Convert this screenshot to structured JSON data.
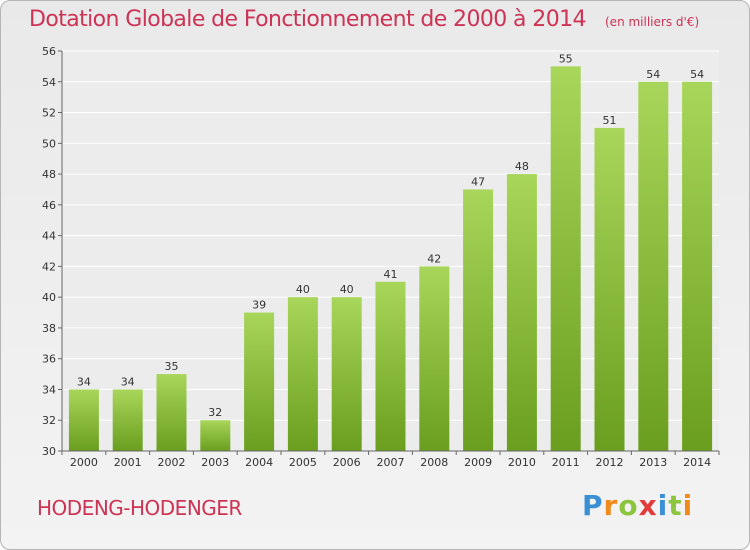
{
  "header": {
    "title": "Dotation Globale de Fonctionnement de 2000 à 2014",
    "subtitle": "(en milliers d'€)"
  },
  "footer": {
    "commune": "HODENG-HODENGER",
    "logo": "Proxiti"
  },
  "colors": {
    "accent": "#cc3355",
    "bar_top": "#a8d65a",
    "bar_bottom": "#6a9e1e",
    "grid": "#ffffff"
  },
  "chart_data": {
    "type": "bar",
    "categories": [
      "2000",
      "2001",
      "2002",
      "2003",
      "2004",
      "2005",
      "2006",
      "2007",
      "2008",
      "2009",
      "2010",
      "2011",
      "2012",
      "2013",
      "2014"
    ],
    "values": [
      34,
      34,
      35,
      32,
      39,
      40,
      40,
      41,
      42,
      47,
      48,
      55,
      51,
      54,
      54
    ],
    "title": "Dotation Globale de Fonctionnement de 2000 à 2014",
    "subtitle": "(en milliers d'€)",
    "ylim": [
      30,
      56
    ],
    "yticks": [
      30,
      32,
      34,
      36,
      38,
      40,
      42,
      44,
      46,
      48,
      50,
      52,
      54,
      56
    ],
    "grid": true,
    "data_labels": true
  }
}
